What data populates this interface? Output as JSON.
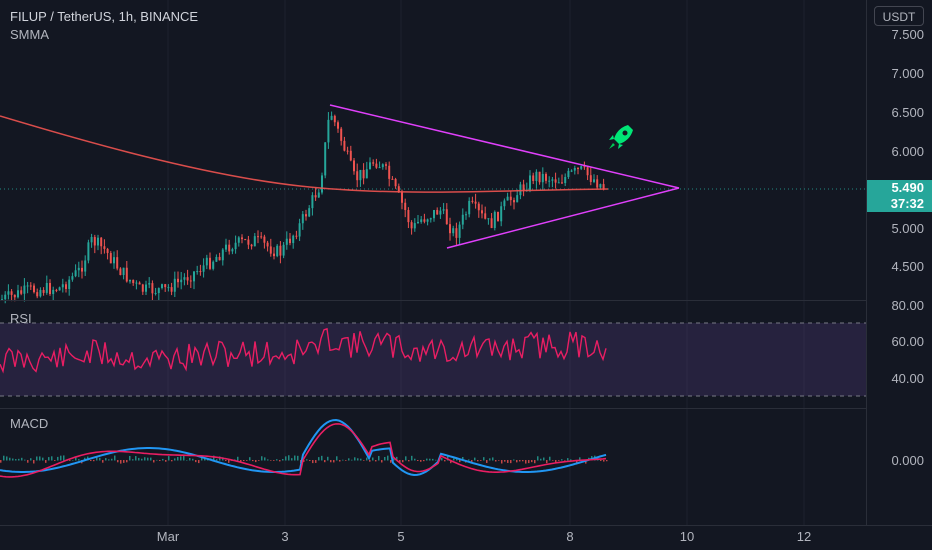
{
  "header": {
    "symbol_line": "FILUP / TetherUS, 1h, BINANCE",
    "indicator": "SMMA"
  },
  "currency": "USDT",
  "price_axis": {
    "labels": [
      "7.500",
      "7.000",
      "6.500",
      "6.000",
      "5.000",
      "4.500"
    ],
    "last_price": "5.490",
    "countdown": "37:32"
  },
  "rsi": {
    "title": "RSI",
    "labels": [
      "80.00",
      "60.00",
      "40.00"
    ]
  },
  "macd": {
    "title": "MACD",
    "labels": [
      "0.000"
    ]
  },
  "time_axis": {
    "labels": [
      "Mar",
      "3",
      "5",
      "8",
      "10",
      "12"
    ]
  },
  "colors": {
    "background": "#131722",
    "up": "#26a69a",
    "down": "#ef5350",
    "smma": "#ef5350",
    "triangle": "#e040fb",
    "rsi_line": "#e91e63",
    "rsi_band": "#7e57c2",
    "macd_line": "#2196f3",
    "signal_line": "#e91e63",
    "rocket": "#00e676"
  },
  "drawings": {
    "pattern": "symmetrical triangle",
    "annotation_icon": "rocket-icon"
  }
}
